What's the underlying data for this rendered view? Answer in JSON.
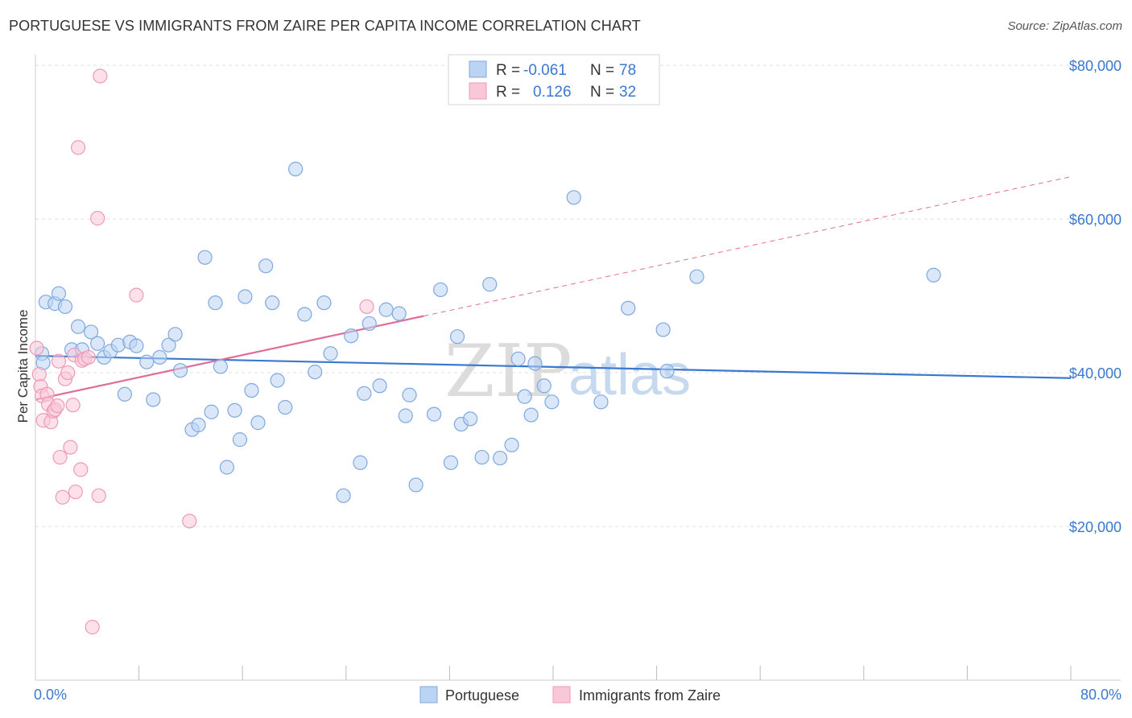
{
  "header": {
    "title": "PORTUGUESE VS IMMIGRANTS FROM ZAIRE PER CAPITA INCOME CORRELATION CHART",
    "source": "Source: ZipAtlas.com"
  },
  "colors": {
    "blue": "#3a78d0",
    "blue_fill": "#bcd4f3",
    "blue_stroke": "#7fa9df",
    "pink": "#e06d98",
    "pink_fill": "#f9c8d8",
    "pink_stroke": "#ee9ab7",
    "grid": "#e0e0e0"
  },
  "watermark": {
    "left": "ZIP",
    "right": "atlas"
  },
  "stats": [
    {
      "r_label": "R =",
      "r_value": "-0.061",
      "n_label": "N =",
      "n_value": "78",
      "color": "blue"
    },
    {
      "r_label": "R =",
      "r_value": "0.126",
      "n_label": "N =",
      "n_value": "32",
      "color": "pink"
    }
  ],
  "chart_data": {
    "type": "scatter",
    "title": "PORTUGUESE VS IMMIGRANTS FROM ZAIRE PER CAPITA INCOME CORRELATION CHART",
    "xlabel": "",
    "ylabel": "Per Capita Income",
    "xlim": [
      0,
      80
    ],
    "ylim": [
      0,
      82000
    ],
    "x_tick_labels": [
      "0.0%",
      "80.0%"
    ],
    "y_ticks": [
      20000,
      40000,
      60000,
      80000
    ],
    "y_tick_labels": [
      "$20,000",
      "$40,000",
      "$60,000",
      "$80,000"
    ],
    "grid": true,
    "legend_position": "bottom-center",
    "series": [
      {
        "name": "Portuguese",
        "color": "blue",
        "trend": {
          "x": [
            0,
            80
          ],
          "y": [
            42200,
            39300
          ],
          "dashed_from": null
        },
        "points": [
          [
            0.5,
            42500
          ],
          [
            0.8,
            49200
          ],
          [
            1.5,
            49000
          ],
          [
            1.8,
            50300
          ],
          [
            2.3,
            48600
          ],
          [
            2.8,
            43000
          ],
          [
            3.3,
            46000
          ],
          [
            3.6,
            43000
          ],
          [
            4.3,
            45300
          ],
          [
            4.8,
            43800
          ],
          [
            5.3,
            42000
          ],
          [
            5.8,
            42800
          ],
          [
            6.4,
            43600
          ],
          [
            6.9,
            37200
          ],
          [
            7.3,
            44000
          ],
          [
            7.8,
            43500
          ],
          [
            8.6,
            41400
          ],
          [
            9.1,
            36500
          ],
          [
            9.6,
            42000
          ],
          [
            10.3,
            43600
          ],
          [
            10.8,
            45000
          ],
          [
            11.2,
            40300
          ],
          [
            12.1,
            32600
          ],
          [
            12.6,
            33200
          ],
          [
            13.1,
            55000
          ],
          [
            13.6,
            34900
          ],
          [
            13.9,
            49100
          ],
          [
            14.3,
            40800
          ],
          [
            14.8,
            27700
          ],
          [
            15.4,
            35100
          ],
          [
            15.8,
            31300
          ],
          [
            16.2,
            49900
          ],
          [
            16.7,
            37700
          ],
          [
            17.2,
            33500
          ],
          [
            17.8,
            53900
          ],
          [
            18.3,
            49100
          ],
          [
            18.7,
            39000
          ],
          [
            19.3,
            35500
          ],
          [
            20.1,
            66500
          ],
          [
            20.8,
            47600
          ],
          [
            21.6,
            40100
          ],
          [
            22.3,
            49100
          ],
          [
            22.8,
            42500
          ],
          [
            23.8,
            24000
          ],
          [
            24.4,
            44800
          ],
          [
            25.1,
            28300
          ],
          [
            25.4,
            37300
          ],
          [
            25.8,
            46400
          ],
          [
            26.6,
            38300
          ],
          [
            27.1,
            48200
          ],
          [
            28.1,
            47700
          ],
          [
            28.6,
            34400
          ],
          [
            28.9,
            37100
          ],
          [
            29.4,
            25400
          ],
          [
            30.8,
            34600
          ],
          [
            31.3,
            50800
          ],
          [
            32.1,
            28300
          ],
          [
            32.6,
            44700
          ],
          [
            32.9,
            33300
          ],
          [
            33.6,
            34000
          ],
          [
            34.5,
            29000
          ],
          [
            35.1,
            51500
          ],
          [
            35.9,
            28900
          ],
          [
            36.8,
            30600
          ],
          [
            37.3,
            41800
          ],
          [
            37.8,
            36900
          ],
          [
            38.3,
            34500
          ],
          [
            38.6,
            41200
          ],
          [
            39.3,
            38300
          ],
          [
            39.9,
            36200
          ],
          [
            41.6,
            62800
          ],
          [
            43.7,
            36200
          ],
          [
            45.8,
            48400
          ],
          [
            48.5,
            45600
          ],
          [
            48.8,
            40200
          ],
          [
            51.1,
            52500
          ],
          [
            69.4,
            52700
          ],
          [
            0.6,
            41300
          ]
        ]
      },
      {
        "name": "Immigrants from Zaire",
        "color": "pink",
        "trend": {
          "x": [
            0,
            80
          ],
          "y": [
            36500,
            65500
          ],
          "dashed_from": 30
        },
        "points": [
          [
            0.1,
            43200
          ],
          [
            0.3,
            39800
          ],
          [
            0.4,
            38200
          ],
          [
            0.5,
            37000
          ],
          [
            0.6,
            33800
          ],
          [
            0.9,
            37200
          ],
          [
            1.0,
            35900
          ],
          [
            1.2,
            33600
          ],
          [
            1.4,
            35000
          ],
          [
            1.5,
            35200
          ],
          [
            1.7,
            35700
          ],
          [
            1.8,
            41500
          ],
          [
            1.9,
            29000
          ],
          [
            2.1,
            23800
          ],
          [
            2.3,
            39200
          ],
          [
            2.5,
            40000
          ],
          [
            2.7,
            30300
          ],
          [
            2.9,
            35800
          ],
          [
            3.0,
            42300
          ],
          [
            3.1,
            24500
          ],
          [
            3.3,
            69300
          ],
          [
            3.5,
            27400
          ],
          [
            3.6,
            41600
          ],
          [
            3.8,
            41800
          ],
          [
            4.1,
            42000
          ],
          [
            4.4,
            6900
          ],
          [
            4.8,
            60100
          ],
          [
            4.9,
            24000
          ],
          [
            5.0,
            78600
          ],
          [
            7.8,
            50100
          ],
          [
            11.9,
            20700
          ],
          [
            25.6,
            48600
          ]
        ]
      }
    ]
  },
  "legend": {
    "items": [
      {
        "label": "Portuguese",
        "color": "blue"
      },
      {
        "label": "Immigrants from Zaire",
        "color": "pink"
      }
    ]
  }
}
